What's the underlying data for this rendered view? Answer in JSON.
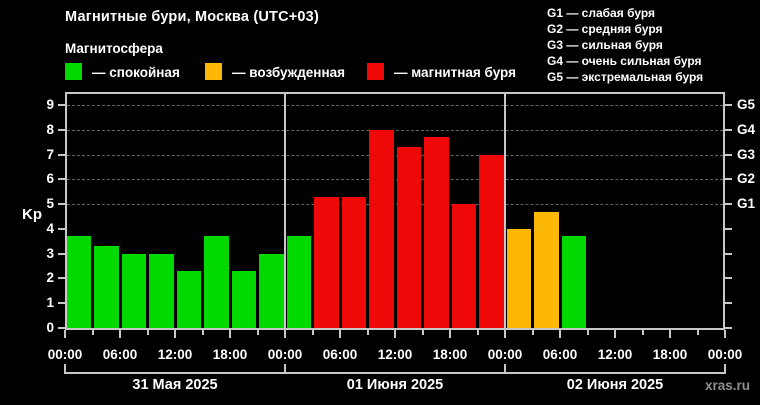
{
  "header": {
    "title": "Магнитные бури, Москва (UTC+03)",
    "subtitle": "Магнитосфера",
    "legend": [
      {
        "label": "— спокойная",
        "color": "#00d900",
        "status": "calm"
      },
      {
        "label": "— возбужденная",
        "color": "#fcb805",
        "status": "excited"
      },
      {
        "label": "— магнитная буря",
        "color": "#ee0808",
        "status": "storm"
      }
    ],
    "storm_scale": [
      "G1 — слабая буря",
      "G2 — средняя буря",
      "G3 — сильная буря",
      "G4 — очень сильная буря",
      "G5 — экстремальная буря"
    ]
  },
  "footer": {
    "watermark": "xras.ru"
  },
  "chart_data": {
    "type": "bar",
    "title": "Магнитные бури, Москва (UTC+03)",
    "ylabel": "Kp",
    "ylim": [
      0,
      9.45
    ],
    "yticks": [
      0,
      1,
      2,
      3,
      4,
      5,
      6,
      7,
      8,
      9
    ],
    "grid_levels": [
      5,
      6,
      7,
      8,
      9
    ],
    "grid": "dashed horizontal at G-levels only",
    "legend_position": "top-left",
    "right_axis_labels": {
      "5": "G1",
      "6": "G2",
      "7": "G3",
      "8": "G4",
      "9": "G5"
    },
    "x_tick_labels": [
      "00:00",
      "06:00",
      "12:00",
      "18:00",
      "00:00",
      "06:00",
      "12:00",
      "18:00",
      "00:00",
      "06:00",
      "12:00",
      "18:00",
      "00:00"
    ],
    "hours_per_bar": 3,
    "status_colors": {
      "calm": "#00d900",
      "excited": "#fcb805",
      "storm": "#ee0808"
    },
    "days": [
      {
        "date": "31 Мая 2025",
        "bars": [
          {
            "kp": 3.7,
            "status": "calm"
          },
          {
            "kp": 3.3,
            "status": "calm"
          },
          {
            "kp": 3.0,
            "status": "calm"
          },
          {
            "kp": 3.0,
            "status": "calm"
          },
          {
            "kp": 2.3,
            "status": "calm"
          },
          {
            "kp": 3.7,
            "status": "calm"
          },
          {
            "kp": 2.3,
            "status": "calm"
          },
          {
            "kp": 3.0,
            "status": "calm"
          }
        ]
      },
      {
        "date": "01 Июня 2025",
        "bars": [
          {
            "kp": 3.7,
            "status": "calm"
          },
          {
            "kp": 5.3,
            "status": "storm"
          },
          {
            "kp": 5.3,
            "status": "storm"
          },
          {
            "kp": 8.0,
            "status": "storm"
          },
          {
            "kp": 7.3,
            "status": "storm"
          },
          {
            "kp": 7.7,
            "status": "storm"
          },
          {
            "kp": 5.0,
            "status": "storm"
          },
          {
            "kp": 7.0,
            "status": "storm"
          }
        ]
      },
      {
        "date": "02 Июня 2025",
        "bars": [
          {
            "kp": 4.0,
            "status": "excited"
          },
          {
            "kp": 4.7,
            "status": "excited"
          },
          {
            "kp": 3.7,
            "status": "calm"
          }
        ]
      }
    ]
  }
}
